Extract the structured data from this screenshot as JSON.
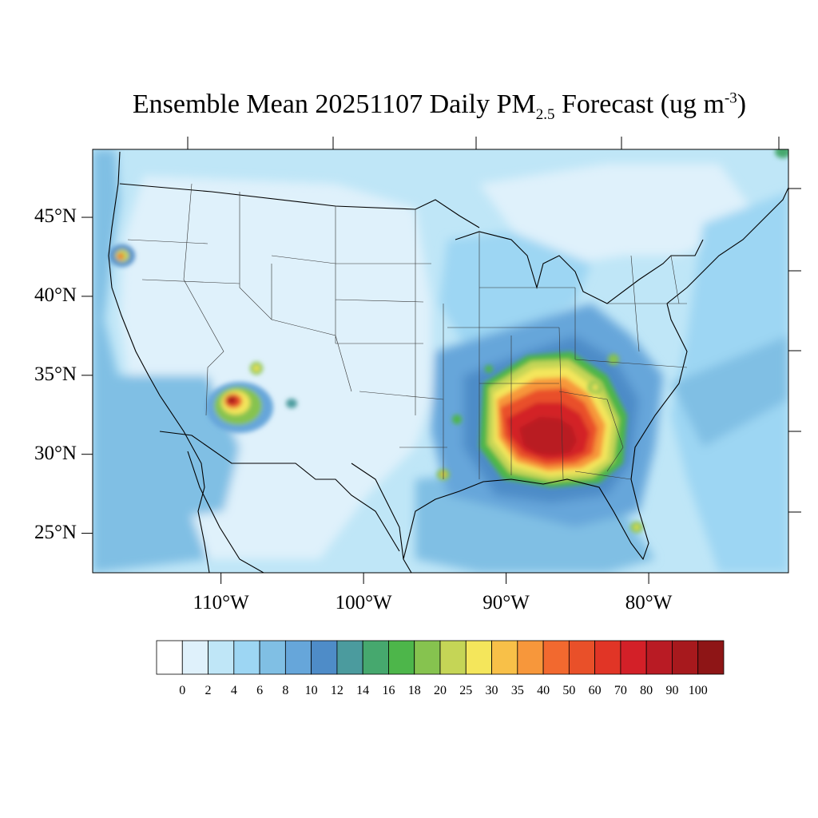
{
  "title": {
    "prefix": "Ensemble Mean 20251107 Daily PM",
    "subscript": "2.5",
    "middle": " Forecast (ug m",
    "superscript": "-3",
    "suffix": ")"
  },
  "map": {
    "lon_range": [
      -119,
      -70.2
    ],
    "lat_range": [
      22.5,
      49.3
    ],
    "lat_labels": [
      {
        "lat": 45,
        "text": "45°N"
      },
      {
        "lat": 40,
        "text": "40°N"
      },
      {
        "lat": 35,
        "text": "35°N"
      },
      {
        "lat": 30,
        "text": "30°N"
      },
      {
        "lat": 25,
        "text": "25°N"
      }
    ],
    "lon_labels": [
      {
        "lon": -110,
        "text": "110°W"
      },
      {
        "lon": -100,
        "text": "100°W"
      },
      {
        "lon": -90,
        "text": "90°W"
      },
      {
        "lon": -80,
        "text": "80°W"
      }
    ],
    "hotspots": [
      {
        "region": "southeast-mississippi-alabama",
        "lon": -88.5,
        "lat": 31.7,
        "peak_ugm3": 90
      },
      {
        "region": "central-arizona",
        "lon": -110.0,
        "lat": 33.5,
        "peak_ugm3": 80
      },
      {
        "region": "southwest-oregon",
        "lon": -117.5,
        "lat": 42.8,
        "peak_ugm3": 50
      },
      {
        "region": "southeast-louisiana",
        "lon": -95.0,
        "lat": 28.9,
        "peak_ugm3": 35
      },
      {
        "region": "south-florida",
        "lon": -81.2,
        "lat": 25.6,
        "peak_ugm3": 30
      },
      {
        "region": "northern-new-mexico-arizona",
        "lon": -108.8,
        "lat": 35.7,
        "peak_ugm3": 30
      },
      {
        "region": "east-tennessee-georgia",
        "lon": -84.0,
        "lat": 34.3,
        "peak_ugm3": 25
      }
    ]
  },
  "colorbar": {
    "levels": [
      "0",
      "2",
      "4",
      "6",
      "8",
      "10",
      "12",
      "14",
      "16",
      "18",
      "20",
      "25",
      "30",
      "35",
      "40",
      "50",
      "60",
      "70",
      "80",
      "90",
      "100"
    ],
    "colors": [
      "#ffffff",
      "#dff1fb",
      "#bfe6f7",
      "#9dd6f3",
      "#80bfe4",
      "#66a6da",
      "#4e8cc8",
      "#4b9b9e",
      "#46a86e",
      "#4db64a",
      "#86c34f",
      "#c5d556",
      "#f4e65b",
      "#f8c048",
      "#f7973b",
      "#f2692f",
      "#e95029",
      "#e13526",
      "#d32028",
      "#b91b24",
      "#a7191d",
      "#8e1516"
    ]
  }
}
